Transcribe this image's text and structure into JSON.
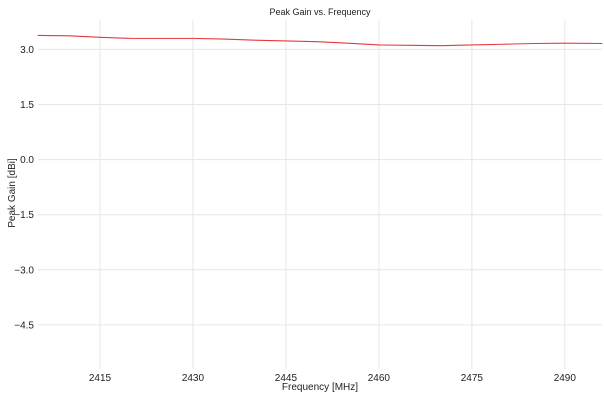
{
  "chart_data": {
    "type": "line",
    "title": "Peak Gain vs. Frequency",
    "xlabel": "Frequency [MHz]",
    "ylabel": "Peak Gain [dBi]",
    "xlim": [
      2405,
      2496
    ],
    "ylim": [
      -5.7,
      3.8
    ],
    "xticks": [
      2415,
      2430,
      2445,
      2460,
      2475,
      2490
    ],
    "yticks": [
      3.0,
      1.5,
      0.0,
      -1.5,
      -3.0,
      -4.5
    ],
    "ytick_labels": [
      "3.0",
      "1.5",
      "0.0",
      "−1.5",
      "−3.0",
      "−4.5"
    ],
    "grid": true,
    "series": [
      {
        "color": "#e8383d",
        "x": [
          2405,
          2410,
          2415,
          2420,
          2425,
          2430,
          2435,
          2440,
          2445,
          2450,
          2455,
          2460,
          2465,
          2470,
          2475,
          2480,
          2485,
          2490,
          2496
        ],
        "y": [
          3.38,
          3.37,
          3.33,
          3.3,
          3.3,
          3.3,
          3.28,
          3.25,
          3.23,
          3.21,
          3.17,
          3.12,
          3.11,
          3.1,
          3.12,
          3.14,
          3.16,
          3.17,
          3.16
        ]
      }
    ]
  }
}
